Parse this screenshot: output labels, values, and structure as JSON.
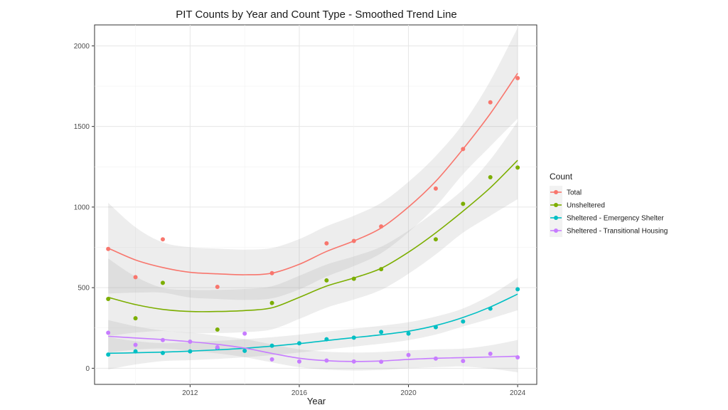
{
  "chart_data": {
    "type": "scatter",
    "title": "PIT Counts by Year and Count Type - Smoothed Trend Line",
    "xlabel": "Year",
    "ylabel": "",
    "xlim": [
      2008.5,
      2024.7
    ],
    "ylim": [
      -100,
      2130
    ],
    "x_ticks": [
      2012,
      2016,
      2020,
      2024
    ],
    "y_ticks": [
      0,
      500,
      1000,
      1500,
      2000
    ],
    "grid": true,
    "legend": {
      "title": "Count",
      "position": "right"
    },
    "x": [
      2009,
      2010,
      2011,
      2012,
      2013,
      2014,
      2015,
      2016,
      2017,
      2018,
      2019,
      2020,
      2021,
      2022,
      2023,
      2024
    ],
    "series": [
      {
        "name": "Total",
        "color": "#F8766D",
        "points": [
          [
            2009,
            740
          ],
          [
            2010,
            565
          ],
          [
            2011,
            800
          ],
          [
            2013,
            505
          ],
          [
            2015,
            590
          ],
          [
            2017,
            775
          ],
          [
            2018,
            790
          ],
          [
            2019,
            880
          ],
          [
            2021,
            1115
          ],
          [
            2022,
            1360
          ],
          [
            2023,
            1650
          ],
          [
            2024,
            1800
          ]
        ],
        "trend": [
          [
            2009,
            745
          ],
          [
            2010,
            672
          ],
          [
            2011,
            625
          ],
          [
            2012,
            595
          ],
          [
            2013,
            586
          ],
          [
            2014,
            580
          ],
          [
            2015,
            590
          ],
          [
            2016,
            645
          ],
          [
            2017,
            725
          ],
          [
            2018,
            790
          ],
          [
            2019,
            870
          ],
          [
            2020,
            1000
          ],
          [
            2021,
            1160
          ],
          [
            2022,
            1360
          ],
          [
            2023,
            1580
          ],
          [
            2024,
            1830
          ]
        ],
        "band": 0.07
      },
      {
        "name": "Unsheltered",
        "color": "#7CAE00",
        "points": [
          [
            2009,
            430
          ],
          [
            2010,
            310
          ],
          [
            2011,
            530
          ],
          [
            2013,
            240
          ],
          [
            2015,
            405
          ],
          [
            2017,
            545
          ],
          [
            2018,
            555
          ],
          [
            2019,
            615
          ],
          [
            2021,
            800
          ],
          [
            2022,
            1020
          ],
          [
            2023,
            1185
          ],
          [
            2024,
            1245
          ]
        ],
        "trend": [
          [
            2009,
            440
          ],
          [
            2010,
            395
          ],
          [
            2011,
            365
          ],
          [
            2012,
            352
          ],
          [
            2013,
            352
          ],
          [
            2014,
            358
          ],
          [
            2015,
            375
          ],
          [
            2016,
            440
          ],
          [
            2017,
            510
          ],
          [
            2018,
            560
          ],
          [
            2019,
            620
          ],
          [
            2020,
            720
          ],
          [
            2021,
            840
          ],
          [
            2022,
            975
          ],
          [
            2023,
            1120
          ],
          [
            2024,
            1290
          ]
        ],
        "band": 0.06
      },
      {
        "name": "Sheltered - Emergency Shelter",
        "color": "#00BFC4",
        "points": [
          [
            2009,
            85
          ],
          [
            2010,
            105
          ],
          [
            2011,
            95
          ],
          [
            2012,
            105
          ],
          [
            2013,
            125
          ],
          [
            2014,
            108
          ],
          [
            2015,
            140
          ],
          [
            2016,
            155
          ],
          [
            2017,
            180
          ],
          [
            2018,
            190
          ],
          [
            2019,
            225
          ],
          [
            2020,
            215
          ],
          [
            2021,
            255
          ],
          [
            2022,
            290
          ],
          [
            2023,
            370
          ],
          [
            2024,
            490
          ]
        ],
        "trend": [
          [
            2009,
            93
          ],
          [
            2010,
            96
          ],
          [
            2011,
            100
          ],
          [
            2012,
            106
          ],
          [
            2013,
            114
          ],
          [
            2014,
            124
          ],
          [
            2015,
            137
          ],
          [
            2016,
            153
          ],
          [
            2017,
            172
          ],
          [
            2018,
            190
          ],
          [
            2019,
            208
          ],
          [
            2020,
            230
          ],
          [
            2021,
            265
          ],
          [
            2022,
            315
          ],
          [
            2023,
            380
          ],
          [
            2024,
            460
          ]
        ],
        "band": 0.025
      },
      {
        "name": "Sheltered - Transitional Housing",
        "color": "#C77CFF",
        "points": [
          [
            2009,
            220
          ],
          [
            2010,
            145
          ],
          [
            2011,
            175
          ],
          [
            2012,
            165
          ],
          [
            2013,
            130
          ],
          [
            2014,
            215
          ],
          [
            2015,
            55
          ],
          [
            2016,
            42
          ],
          [
            2017,
            48
          ],
          [
            2018,
            42
          ],
          [
            2019,
            40
          ],
          [
            2020,
            82
          ],
          [
            2021,
            60
          ],
          [
            2022,
            45
          ],
          [
            2023,
            90
          ],
          [
            2024,
            68
          ]
        ],
        "trend": [
          [
            2009,
            198
          ],
          [
            2010,
            188
          ],
          [
            2011,
            178
          ],
          [
            2012,
            165
          ],
          [
            2013,
            148
          ],
          [
            2014,
            125
          ],
          [
            2015,
            92
          ],
          [
            2016,
            62
          ],
          [
            2017,
            47
          ],
          [
            2018,
            42
          ],
          [
            2019,
            45
          ],
          [
            2020,
            55
          ],
          [
            2021,
            62
          ],
          [
            2022,
            66
          ],
          [
            2023,
            70
          ],
          [
            2024,
            75
          ]
        ],
        "band": 0.025
      }
    ]
  }
}
